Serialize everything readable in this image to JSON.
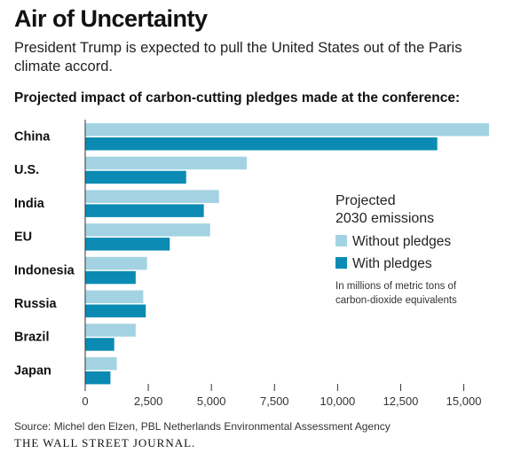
{
  "title": "Air of Uncertainty",
  "subtitle": "President Trump is expected to pull the United States out of the Paris climate accord.",
  "heading": "Projected impact of carbon-cutting pledges made at the conference:",
  "legend": {
    "title_line1": "Projected",
    "title_line2": "2030 emissions",
    "note_line1": "In millions of metric tons of",
    "note_line2": "carbon-dioxide equivalents"
  },
  "source": "Source: Michel den Elzen, PBL Netherlands Environmental Assessment Agency",
  "brand": "THE WALL STREET JOURNAL.",
  "colors": {
    "without": "#a3d3e3",
    "with": "#0b8bb3",
    "axis": "#333333"
  },
  "chart_data": {
    "type": "bar",
    "orientation": "horizontal",
    "categories": [
      "China",
      "U.S.",
      "India",
      "EU",
      "Indonesia",
      "Russia",
      "Brazil",
      "Japan"
    ],
    "series": [
      {
        "name": "Without pledges",
        "values": [
          16000,
          6400,
          5300,
          4950,
          2450,
          2300,
          2000,
          1250
        ]
      },
      {
        "name": "With pledges",
        "values": [
          13950,
          4000,
          4700,
          3350,
          2000,
          2400,
          1150,
          1000
        ]
      }
    ],
    "xlim": [
      0,
      16000
    ],
    "xticks": [
      0,
      2500,
      5000,
      7500,
      10000,
      12500,
      15000
    ],
    "xtick_labels": [
      "0",
      "2,500",
      "5,000",
      "7,500",
      "10,000",
      "12,500",
      "15,000"
    ],
    "legend_position": "right",
    "grid": false
  }
}
